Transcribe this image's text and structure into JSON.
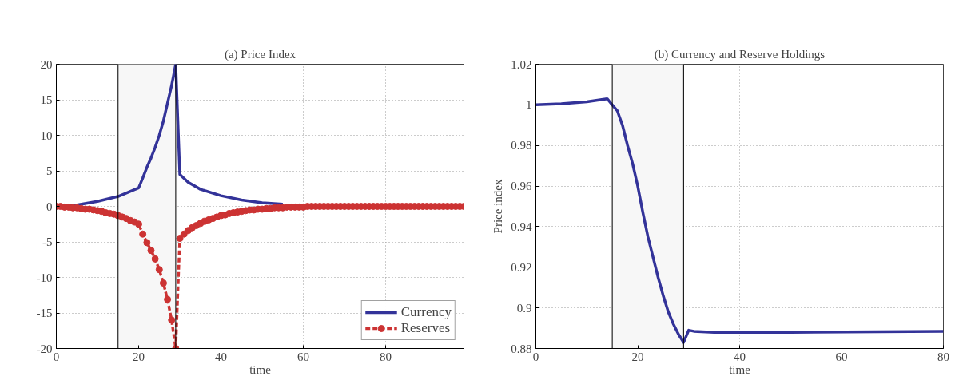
{
  "chart_data": [
    {
      "type": "line",
      "title": "(a) Price Index",
      "xlabel": "time",
      "xlim": [
        0,
        99
      ],
      "xticks": [
        0,
        20,
        40,
        60,
        80
      ],
      "ylim": [
        -20,
        20
      ],
      "yticks": [
        -20,
        -15,
        -10,
        -5,
        0,
        5,
        10,
        15,
        20
      ],
      "grid": true,
      "legend": "bottom right",
      "bands": [
        {
          "axis": "x",
          "from": 15,
          "to": 29,
          "color": "#f7f7f7"
        }
      ],
      "ref_lines": [
        {
          "axis": "x",
          "value": 15,
          "color": "#000000"
        },
        {
          "axis": "x",
          "value": 29,
          "color": "#000000"
        }
      ],
      "series": [
        {
          "name": "Currency",
          "color": "#333399",
          "line_style": "solid",
          "marker": "none",
          "x": [
            0,
            5,
            10,
            15,
            20,
            21,
            22,
            23,
            24,
            25,
            26,
            27,
            28,
            29,
            30,
            32,
            35,
            40,
            45,
            50,
            55
          ],
          "values": [
            0,
            0.2,
            0.7,
            1.4,
            2.6,
            4.0,
            5.5,
            6.8,
            8.3,
            10.0,
            12.0,
            14.5,
            17.0,
            20.0,
            4.5,
            3.4,
            2.4,
            1.5,
            0.9,
            0.5,
            0.3
          ]
        },
        {
          "name": "Reserves",
          "color": "#cc3333",
          "line_style": "dashed",
          "marker": "circle",
          "x": [
            0,
            1,
            2,
            3,
            4,
            5,
            6,
            7,
            8,
            9,
            10,
            11,
            12,
            13,
            14,
            15,
            16,
            17,
            18,
            19,
            20,
            21,
            22,
            23,
            24,
            25,
            26,
            27,
            28,
            29,
            30,
            31,
            32,
            33,
            34,
            35,
            36,
            37,
            38,
            39,
            40,
            41,
            42,
            43,
            44,
            45,
            46,
            47,
            48,
            49,
            50,
            51,
            52,
            53,
            54,
            55,
            56,
            57,
            58,
            59,
            60,
            61,
            62,
            63,
            64,
            65,
            66,
            67,
            68,
            69,
            70,
            71,
            72,
            73,
            74,
            75,
            76,
            77,
            78,
            79,
            80,
            81,
            82,
            83,
            84,
            85,
            86,
            87,
            88,
            89,
            90,
            91,
            92,
            93,
            94,
            95,
            96,
            97,
            98,
            99
          ],
          "values": [
            0,
            0,
            -0.1,
            -0.1,
            -0.2,
            -0.2,
            -0.3,
            -0.4,
            -0.4,
            -0.5,
            -0.6,
            -0.7,
            -0.9,
            -1.0,
            -1.1,
            -1.3,
            -1.5,
            -1.7,
            -2.0,
            -2.2,
            -2.5,
            -3.9,
            -5.1,
            -6.2,
            -7.4,
            -8.9,
            -10.8,
            -13.1,
            -16.0,
            -20.0,
            -4.5,
            -3.9,
            -3.4,
            -3.0,
            -2.7,
            -2.4,
            -2.1,
            -1.9,
            -1.7,
            -1.5,
            -1.3,
            -1.2,
            -1.0,
            -0.9,
            -0.8,
            -0.7,
            -0.6,
            -0.5,
            -0.5,
            -0.4,
            -0.4,
            -0.3,
            -0.3,
            -0.2,
            -0.2,
            -0.2,
            -0.1,
            -0.1,
            -0.1,
            -0.1,
            -0.1,
            0,
            0,
            0,
            0,
            0,
            0,
            0,
            0,
            0,
            0,
            0,
            0,
            0,
            0,
            0,
            0,
            0,
            0,
            0,
            0,
            0,
            0,
            0,
            0,
            0,
            0,
            0,
            0,
            0,
            0,
            0,
            0,
            0,
            0,
            0,
            0,
            0,
            0,
            0
          ]
        }
      ]
    },
    {
      "type": "line",
      "title": "(b) Currency and Reserve Holdings",
      "xlabel": "time",
      "ylabel": "Price index",
      "xlim": [
        0,
        80
      ],
      "xticks": [
        0,
        20,
        40,
        60,
        80
      ],
      "ylim": [
        0.88,
        1.02
      ],
      "yticks": [
        0.88,
        0.9,
        0.92,
        0.94,
        0.96,
        0.98,
        1,
        1.02
      ],
      "grid": true,
      "bands": [
        {
          "axis": "x",
          "from": 15,
          "to": 29,
          "color": "#f7f7f7"
        }
      ],
      "ref_lines": [
        {
          "axis": "x",
          "value": 15,
          "color": "#000000"
        },
        {
          "axis": "x",
          "value": 29,
          "color": "#000000"
        }
      ],
      "series": [
        {
          "color": "#333399",
          "line_style": "solid",
          "marker": "none",
          "x": [
            0,
            5,
            10,
            14,
            15,
            16,
            17,
            18,
            19,
            20,
            21,
            22,
            23,
            24,
            25,
            26,
            27,
            28,
            29,
            30,
            31,
            35,
            50,
            80
          ],
          "values": [
            1.0,
            1.0005,
            1.0015,
            1.003,
            1.0,
            0.997,
            0.99,
            0.98,
            0.971,
            0.96,
            0.947,
            0.935,
            0.925,
            0.915,
            0.906,
            0.898,
            0.892,
            0.887,
            0.883,
            0.889,
            0.8885,
            0.888,
            0.888,
            0.8885
          ]
        }
      ]
    }
  ]
}
